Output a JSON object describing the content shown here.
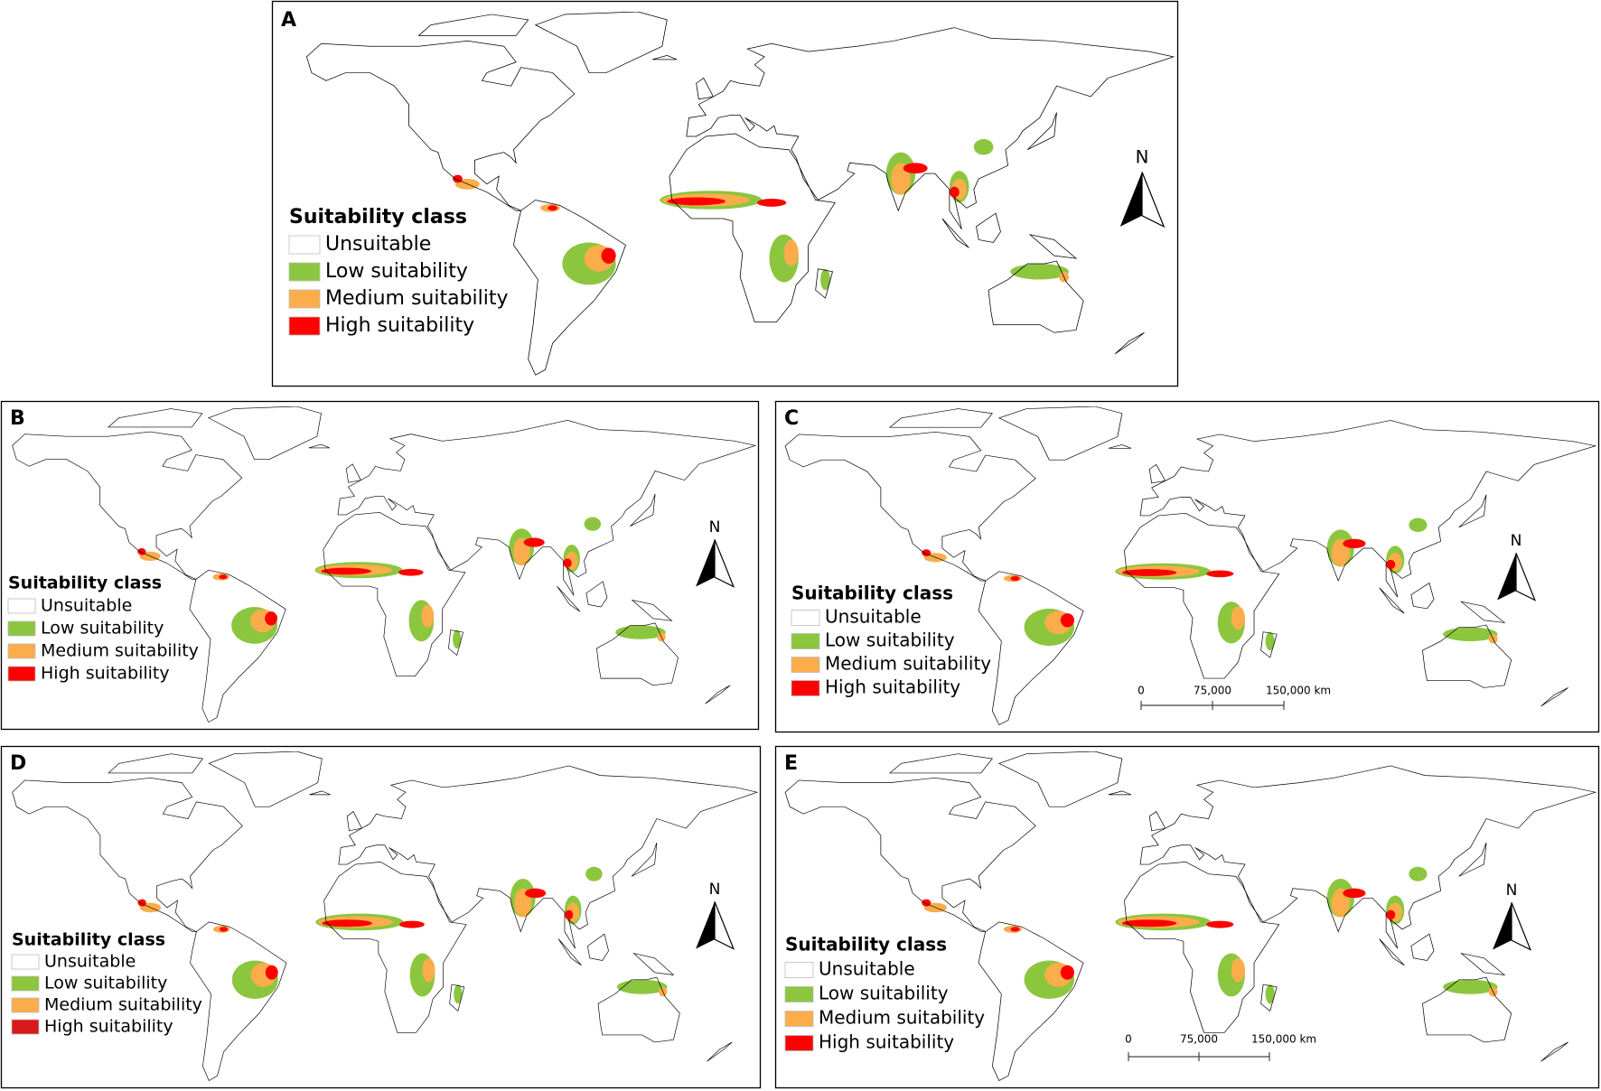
{
  "panels": [
    {
      "label": "A",
      "north": "N",
      "legend": {
        "title": "Suitability class",
        "items": [
          {
            "label": "Unsuitable",
            "color": "#ffffff"
          },
          {
            "label": "Low suitability",
            "color": "#8cc63f"
          },
          {
            "label": "Medium suitability",
            "color": "#fbad4b"
          },
          {
            "label": "High suitability",
            "color": "#ff0000"
          }
        ]
      }
    },
    {
      "label": "B",
      "north": "N",
      "legend": {
        "title": "Suitability class",
        "items": [
          {
            "label": "Unsuitable",
            "color": "#ffffff"
          },
          {
            "label": "Low suitability",
            "color": "#8cc63f"
          },
          {
            "label": "Medium suitability",
            "color": "#fbad4b"
          },
          {
            "label": "High suitability",
            "color": "#ff0000"
          }
        ]
      }
    },
    {
      "label": "C",
      "north": "N",
      "legend": {
        "title": "Suitability class",
        "items": [
          {
            "label": "Unsuitable",
            "color": "#ffffff"
          },
          {
            "label": "Low suitability",
            "color": "#8cc63f"
          },
          {
            "label": "Medium suitability",
            "color": "#fbad4b"
          },
          {
            "label": "High suitability",
            "color": "#ff0000"
          }
        ]
      },
      "scale_bar": [
        "0",
        "75,000",
        "150,000 km"
      ]
    },
    {
      "label": "D",
      "north": "N",
      "legend": {
        "title": "Suitability class",
        "items": [
          {
            "label": "Unsuitable",
            "color": "#ffffff"
          },
          {
            "label": "Low suitability",
            "color": "#8cc63f"
          },
          {
            "label": "Medium suitability",
            "color": "#fbad4b"
          },
          {
            "label": "High suitability",
            "color": "#d7191c"
          }
        ]
      }
    },
    {
      "label": "E",
      "north": "N",
      "legend": {
        "title": "Suitability class",
        "items": [
          {
            "label": "Unsuitable",
            "color": "#ffffff"
          },
          {
            "label": "Low suitability",
            "color": "#8cc63f"
          },
          {
            "label": "Medium suitability",
            "color": "#fbad4b"
          },
          {
            "label": "High suitability",
            "color": "#ff0000"
          }
        ]
      },
      "scale_bar": [
        "0",
        "75,000",
        "150,000 km"
      ]
    }
  ]
}
